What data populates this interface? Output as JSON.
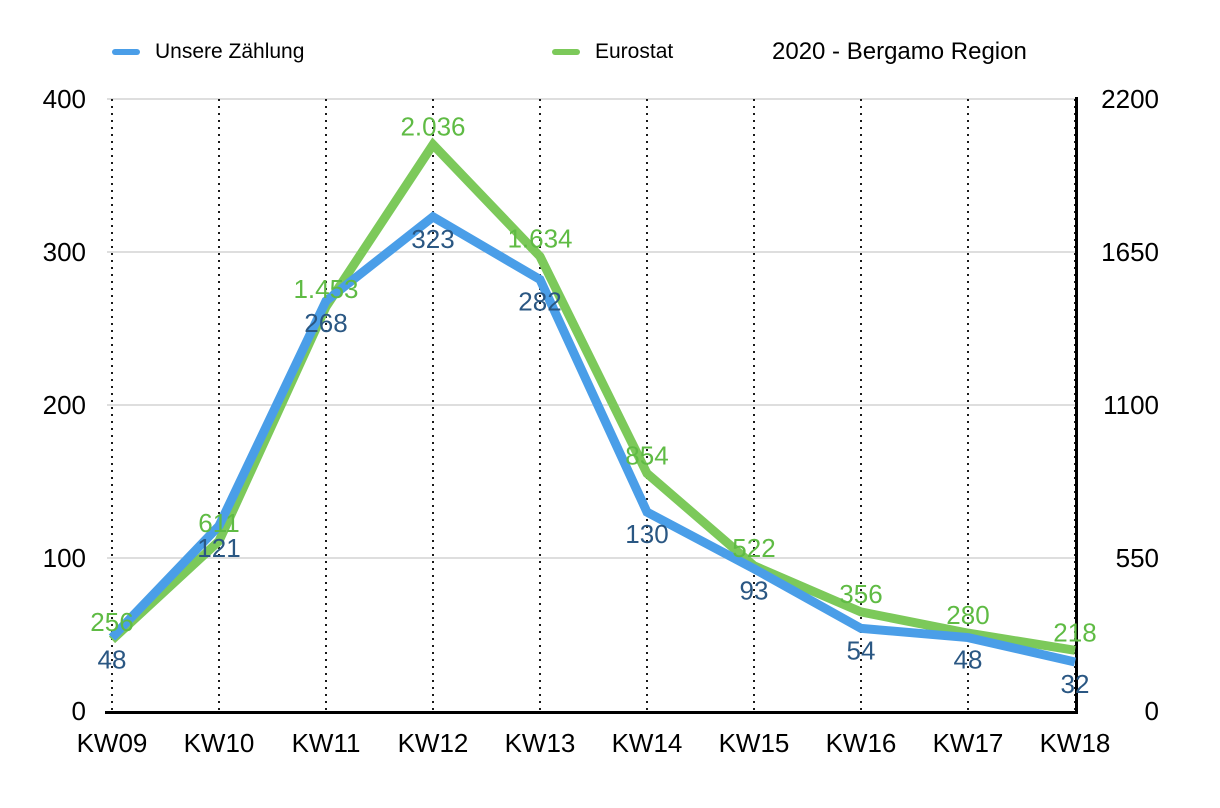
{
  "chart_data": {
    "type": "line",
    "title": "2020 - Bergamo Region",
    "categories": [
      "KW09",
      "KW10",
      "KW11",
      "KW12",
      "KW13",
      "KW14",
      "KW15",
      "KW16",
      "KW17",
      "KW18"
    ],
    "series": [
      {
        "name": "Unsere Zählung",
        "axis": "left",
        "color": "#4A9EE8",
        "label_color": "#2A5783",
        "label_position": "below",
        "values": [
          48,
          121,
          268,
          323,
          282,
          130,
          93,
          54,
          48,
          32
        ],
        "labels": [
          "48",
          "121",
          "268",
          "323",
          "282",
          "130",
          "93",
          "54",
          "48",
          "32"
        ]
      },
      {
        "name": "Eurostat",
        "axis": "right",
        "color": "#7CC95A",
        "label_color": "#5FBB44",
        "label_position": "above",
        "values": [
          256,
          611,
          1453,
          2036,
          1634,
          854,
          522,
          356,
          280,
          218
        ],
        "labels": [
          "256",
          "611",
          "1.453",
          "2.036",
          "1.634",
          "854",
          "522",
          "356",
          "280",
          "218"
        ]
      }
    ],
    "axes": {
      "left": {
        "min": 0,
        "max": 400,
        "ticks": [
          0,
          100,
          200,
          300,
          400
        ]
      },
      "right": {
        "min": 0,
        "max": 2200,
        "ticks": [
          0,
          550,
          1100,
          1650,
          2200
        ]
      }
    },
    "legend_position": "top",
    "grid": {
      "horizontal": true,
      "vertical": "dotted"
    },
    "colors": {
      "h_gridline": "#C9C9C9",
      "v_gridline": "#1A1A1A",
      "axis_line": "#000000",
      "tick_text": "#000000"
    }
  }
}
